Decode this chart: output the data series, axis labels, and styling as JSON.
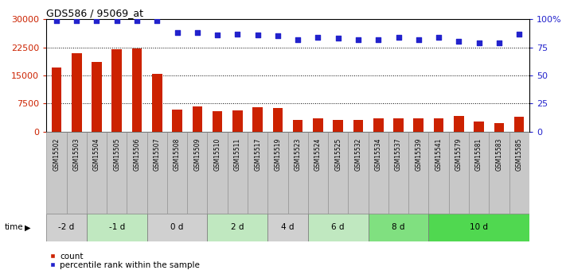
{
  "title": "GDS586 / 95069_at",
  "samples": [
    "GSM15502",
    "GSM15503",
    "GSM15504",
    "GSM15505",
    "GSM15506",
    "GSM15507",
    "GSM15508",
    "GSM15509",
    "GSM15510",
    "GSM15511",
    "GSM15517",
    "GSM15519",
    "GSM15523",
    "GSM15524",
    "GSM15525",
    "GSM15532",
    "GSM15534",
    "GSM15537",
    "GSM15539",
    "GSM15541",
    "GSM15579",
    "GSM15581",
    "GSM15583",
    "GSM15585"
  ],
  "counts": [
    17000,
    21000,
    18500,
    22000,
    22200,
    15400,
    5800,
    6800,
    5500,
    5700,
    6400,
    6200,
    3200,
    3600,
    3200,
    3100,
    3500,
    3500,
    3500,
    3500,
    4200,
    2600,
    2200,
    4000
  ],
  "percentiles": [
    99,
    99,
    99,
    99,
    99,
    99,
    88,
    88,
    86,
    87,
    86,
    85,
    82,
    84,
    83,
    82,
    82,
    84,
    82,
    84,
    80,
    79,
    79,
    87
  ],
  "time_groups": [
    {
      "label": "-2 d",
      "start": 0,
      "end": 2,
      "color": "#d0d0d0"
    },
    {
      "label": "-1 d",
      "start": 2,
      "end": 5,
      "color": "#c0e8c0"
    },
    {
      "label": "0 d",
      "start": 5,
      "end": 8,
      "color": "#d0d0d0"
    },
    {
      "label": "2 d",
      "start": 8,
      "end": 11,
      "color": "#c0e8c0"
    },
    {
      "label": "4 d",
      "start": 11,
      "end": 13,
      "color": "#d0d0d0"
    },
    {
      "label": "6 d",
      "start": 13,
      "end": 16,
      "color": "#c0e8c0"
    },
    {
      "label": "8 d",
      "start": 16,
      "end": 19,
      "color": "#80e080"
    },
    {
      "label": "10 d",
      "start": 19,
      "end": 24,
      "color": "#50d850"
    }
  ],
  "sample_cell_color": "#c8c8c8",
  "bar_color": "#cc2200",
  "dot_color": "#2222cc",
  "ylim_left": [
    0,
    30000
  ],
  "ylim_right": [
    0,
    100
  ],
  "yticks_left": [
    0,
    7500,
    15000,
    22500,
    30000
  ],
  "yticks_right": [
    0,
    25,
    50,
    75,
    100
  ],
  "legend_count_label": "count",
  "legend_pct_label": "percentile rank within the sample"
}
